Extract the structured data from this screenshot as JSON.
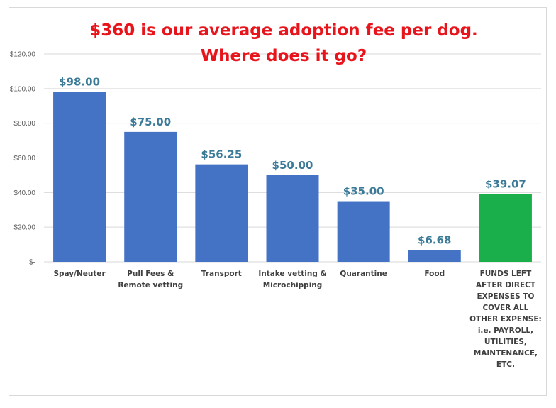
{
  "chart_data": {
    "type": "bar",
    "title": [
      "$360 is our average adoption fee per dog.",
      "Where does it go?"
    ],
    "categories": [
      [
        "Spay/Neuter"
      ],
      [
        "Pull Fees &",
        "Remote vetting"
      ],
      [
        "Transport"
      ],
      [
        "Intake vetting &",
        "Microchipping"
      ],
      [
        "Quarantine"
      ],
      [
        "Food"
      ],
      [
        "FUNDS LEFT",
        "AFTER DIRECT",
        "EXPENSES TO",
        "COVER ALL",
        "OTHER EXPENSE:",
        "i.e. PAYROLL,",
        "UTILITIES,",
        "MAINTENANCE,",
        "ETC."
      ]
    ],
    "values": [
      98.0,
      75.0,
      56.25,
      50.0,
      35.0,
      6.68,
      39.07
    ],
    "data_labels": [
      "$98.00",
      "$75.00",
      "$56.25",
      "$50.00",
      "$35.00",
      "$6.68",
      "$39.07"
    ],
    "bar_colors": [
      "#4472c4",
      "#4472c4",
      "#4472c4",
      "#4472c4",
      "#4472c4",
      "#4472c4",
      "#1aaf4b"
    ],
    "ylim": [
      0,
      120
    ],
    "yticks": [
      0,
      20,
      40,
      60,
      80,
      100,
      120
    ],
    "ytick_labels": [
      "$-",
      "$20.00",
      "$40.00",
      "$60.00",
      "$80.00",
      "$100.00",
      "$120.00"
    ],
    "xlabel": "",
    "ylabel": "",
    "grid": true,
    "legend": "none"
  }
}
